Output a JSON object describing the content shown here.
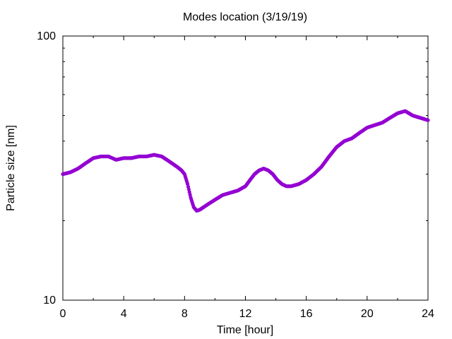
{
  "chart_data": {
    "type": "scatter",
    "title": "Modes location (3/19/19)",
    "xlabel": "Time [hour]",
    "ylabel": "Particle size [nm]",
    "xlim": [
      0,
      24
    ],
    "ylim": [
      10,
      100
    ],
    "yscale": "log",
    "grid": false,
    "marker_color": "#9400d3",
    "x_ticks": [
      0,
      4,
      8,
      12,
      16,
      20,
      24
    ],
    "x_tick_labels": [
      "0",
      "4",
      "8",
      "12",
      "16",
      "20",
      "24"
    ],
    "y_ticks": [
      10,
      100
    ],
    "y_tick_labels": [
      "10",
      "100"
    ],
    "series": [
      {
        "x": [
          0.0,
          0.5,
          1.0,
          1.5,
          2.0,
          2.5,
          3.0,
          3.5,
          4.0,
          4.5,
          5.0,
          5.5,
          6.0,
          6.5,
          7.0,
          7.5,
          7.8,
          8.0,
          8.2,
          8.4,
          8.6,
          8.8,
          9.0,
          9.5,
          10.0,
          10.5,
          11.0,
          11.5,
          12.0,
          12.3,
          12.6,
          12.9,
          13.2,
          13.5,
          13.8,
          14.1,
          14.4,
          14.7,
          15.0,
          15.5,
          16.0,
          16.5,
          17.0,
          17.5,
          18.0,
          18.5,
          19.0,
          19.5,
          20.0,
          20.5,
          21.0,
          21.5,
          22.0,
          22.5,
          23.0,
          23.5,
          24.0
        ],
        "y": [
          30.0,
          30.5,
          31.5,
          33.0,
          34.5,
          35.0,
          35.0,
          34.0,
          34.5,
          34.5,
          35.0,
          35.0,
          35.5,
          35.0,
          33.5,
          32.0,
          31.0,
          30.0,
          27.5,
          24.5,
          22.5,
          21.8,
          22.0,
          23.0,
          24.0,
          25.0,
          25.5,
          26.0,
          27.0,
          28.5,
          30.0,
          31.0,
          31.5,
          31.0,
          30.0,
          28.5,
          27.5,
          27.0,
          27.0,
          27.5,
          28.5,
          30.0,
          32.0,
          35.0,
          38.0,
          40.0,
          41.0,
          43.0,
          45.0,
          46.0,
          47.0,
          49.0,
          51.0,
          52.0,
          50.0,
          49.0,
          48.0
        ]
      }
    ]
  }
}
